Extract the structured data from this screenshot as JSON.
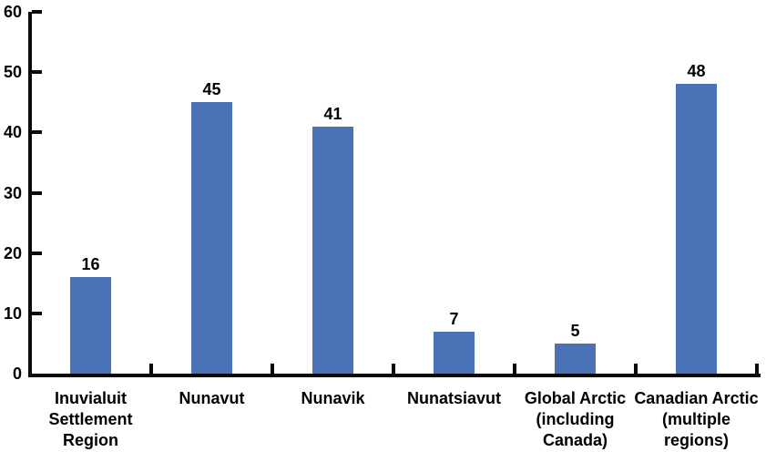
{
  "chart_data": {
    "type": "bar",
    "title": "",
    "xlabel": "",
    "ylabel": "",
    "categories": [
      "Inuvialuit Settlement Region",
      "Nunavut",
      "Nunavik",
      "Nunatsiavut",
      "Global Arctic (including Canada)",
      "Canadian Arctic (multiple regions)"
    ],
    "category_lines": [
      [
        "Inuvialuit",
        "Settlement",
        "Region"
      ],
      [
        "Nunavut"
      ],
      [
        "Nunavik"
      ],
      [
        "Nunatsiavut"
      ],
      [
        "Global Arctic",
        "(including",
        "Canada)"
      ],
      [
        "Canadian Arctic",
        "(multiple",
        "regions)"
      ]
    ],
    "values": [
      16,
      45,
      41,
      7,
      5,
      48
    ],
    "data_labels": [
      "16",
      "45",
      "41",
      "7",
      "5",
      "48"
    ],
    "ylim": [
      0,
      60
    ],
    "yticks": [
      0,
      10,
      20,
      30,
      40,
      50,
      60
    ],
    "grid": false,
    "legend": false,
    "tick_style": "inward",
    "colors": {
      "bar": "#4b72b6",
      "axis": "#0a0a0a",
      "text": "#000000",
      "background": "#ffffff"
    }
  }
}
